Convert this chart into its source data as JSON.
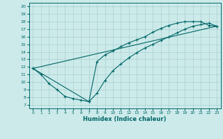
{
  "xlabel": "Humidex (Indice chaleur)",
  "bg_color": "#cceaea",
  "grid_color": "#aad0d0",
  "line_color": "#006666",
  "xlim": [
    -0.5,
    23.5
  ],
  "ylim": [
    6.5,
    20.5
  ],
  "xticks": [
    0,
    1,
    2,
    3,
    4,
    5,
    6,
    7,
    8,
    9,
    10,
    11,
    12,
    13,
    14,
    15,
    16,
    17,
    18,
    19,
    20,
    21,
    22,
    23
  ],
  "yticks": [
    7,
    8,
    9,
    10,
    11,
    12,
    13,
    14,
    15,
    16,
    17,
    18,
    19,
    20
  ],
  "line1_x": [
    0,
    1,
    2,
    3,
    4,
    5,
    6,
    7,
    8,
    9,
    10,
    11,
    12,
    13,
    14,
    15,
    16,
    17,
    18,
    19,
    20,
    21,
    22,
    23
  ],
  "line1_y": [
    11.8,
    11.0,
    9.8,
    9.0,
    8.1,
    7.8,
    7.6,
    7.4,
    12.7,
    13.6,
    14.1,
    14.7,
    15.2,
    15.6,
    16.0,
    16.6,
    17.1,
    17.5,
    17.8,
    18.0,
    18.0,
    18.0,
    17.5,
    17.4
  ],
  "line2_x": [
    0,
    7,
    8,
    9,
    10,
    11,
    12,
    13,
    14,
    15,
    16,
    17,
    18,
    19,
    20,
    21,
    22,
    23
  ],
  "line2_y": [
    11.8,
    7.4,
    8.5,
    10.2,
    11.5,
    12.4,
    13.2,
    13.9,
    14.5,
    15.0,
    15.5,
    16.0,
    16.5,
    17.0,
    17.4,
    17.6,
    17.8,
    17.4
  ],
  "line3_x": [
    0,
    23
  ],
  "line3_y": [
    11.8,
    17.4
  ],
  "markers1_x": [
    0,
    1,
    2,
    3,
    4,
    5,
    6,
    7,
    8,
    9,
    10,
    11,
    12,
    13,
    14,
    15,
    16,
    17,
    18,
    19,
    20,
    21,
    22,
    23
  ],
  "markers1_y": [
    11.8,
    11.0,
    9.8,
    9.0,
    8.1,
    7.8,
    7.6,
    7.4,
    12.7,
    13.6,
    14.1,
    14.7,
    15.2,
    15.6,
    16.0,
    16.6,
    17.1,
    17.5,
    17.8,
    18.0,
    18.0,
    18.0,
    17.5,
    17.4
  ],
  "markers2_x": [
    0,
    7,
    8,
    9,
    10,
    11,
    12,
    13,
    14,
    15,
    16,
    17,
    18,
    19,
    20,
    21,
    22,
    23
  ],
  "markers2_y": [
    11.8,
    7.4,
    8.5,
    10.2,
    11.5,
    12.4,
    13.2,
    13.9,
    14.5,
    15.0,
    15.5,
    16.0,
    16.5,
    17.0,
    17.4,
    17.6,
    17.8,
    17.4
  ]
}
